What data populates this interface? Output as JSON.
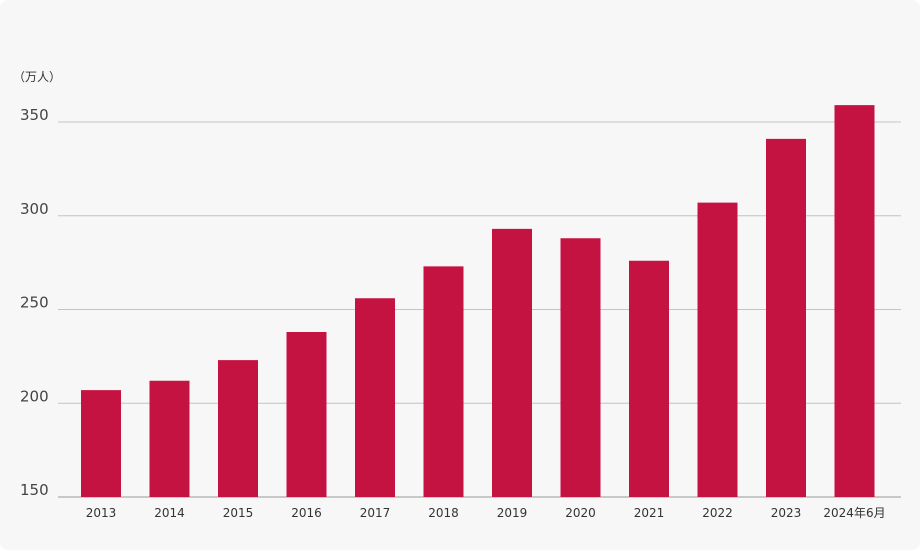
{
  "chart_data": {
    "type": "bar",
    "unit_label": "（万人）",
    "categories": [
      "2013",
      "2014",
      "2015",
      "2016",
      "2017",
      "2018",
      "2019",
      "2020",
      "2021",
      "2022",
      "2023",
      "2024年6月"
    ],
    "values": [
      207,
      212,
      223,
      238,
      256,
      273,
      293,
      288,
      276,
      307,
      341,
      359
    ],
    "ylim": [
      150,
      350
    ],
    "yticks": [
      350,
      300,
      250,
      200,
      150
    ],
    "grid": true,
    "bar_color": "#c41241",
    "title": "",
    "xlabel": "",
    "ylabel": ""
  }
}
